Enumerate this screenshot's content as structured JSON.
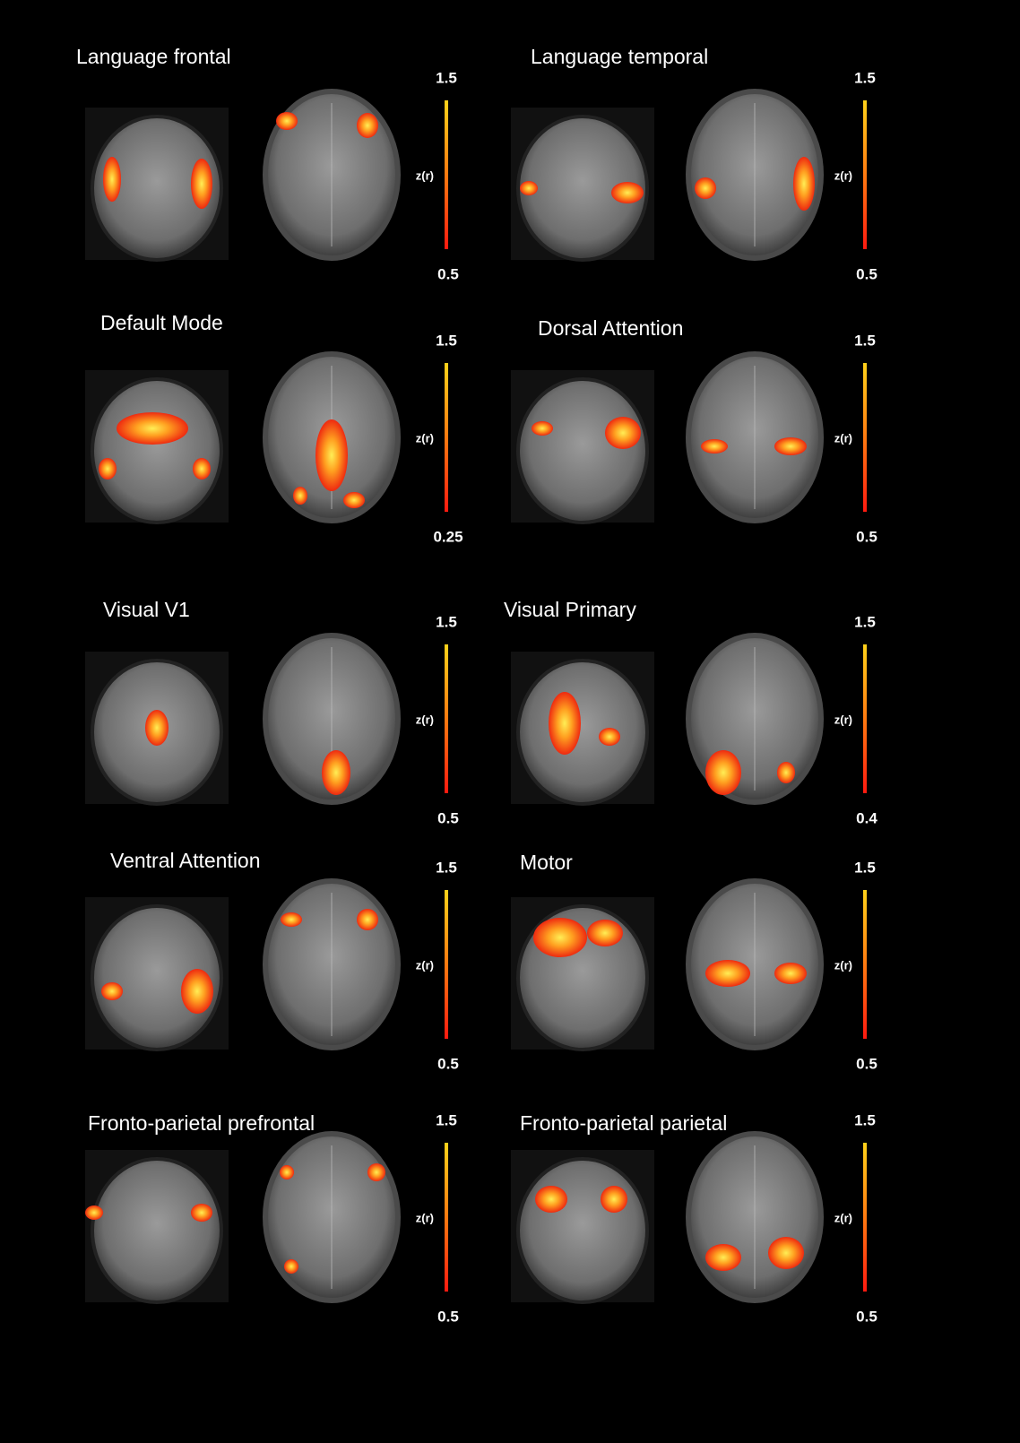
{
  "panels": [
    {
      "title": "Language frontal",
      "scale_max": "1.5",
      "scale_min": "0.5",
      "scale_label": "z(r)"
    },
    {
      "title": "Language temporal",
      "scale_max": "1.5",
      "scale_min": "0.5",
      "scale_label": "z(r)"
    },
    {
      "title": "Default Mode",
      "scale_max": "1.5",
      "scale_min": "0.25",
      "scale_label": "z(r)"
    },
    {
      "title": "Dorsal Attention",
      "scale_max": "1.5",
      "scale_min": "0.5",
      "scale_label": "z(r)"
    },
    {
      "title": "Visual V1",
      "scale_max": "1.5",
      "scale_min": "0.5",
      "scale_label": "z(r)"
    },
    {
      "title": "Visual Primary",
      "scale_max": "1.5",
      "scale_min": "0.4",
      "scale_label": "z(r)"
    },
    {
      "title": "Ventral Attention",
      "scale_max": "1.5",
      "scale_min": "0.5",
      "scale_label": "z(r)"
    },
    {
      "title": "Motor",
      "scale_max": "1.5",
      "scale_min": "0.5",
      "scale_label": "z(r)"
    },
    {
      "title": "Fronto-parietal prefrontal",
      "scale_max": "1.5",
      "scale_min": "0.5",
      "scale_label": "z(r)"
    },
    {
      "title": "Fronto-parietal parietal",
      "scale_max": "1.5",
      "scale_min": "0.5",
      "scale_label": "z(r)"
    }
  ]
}
